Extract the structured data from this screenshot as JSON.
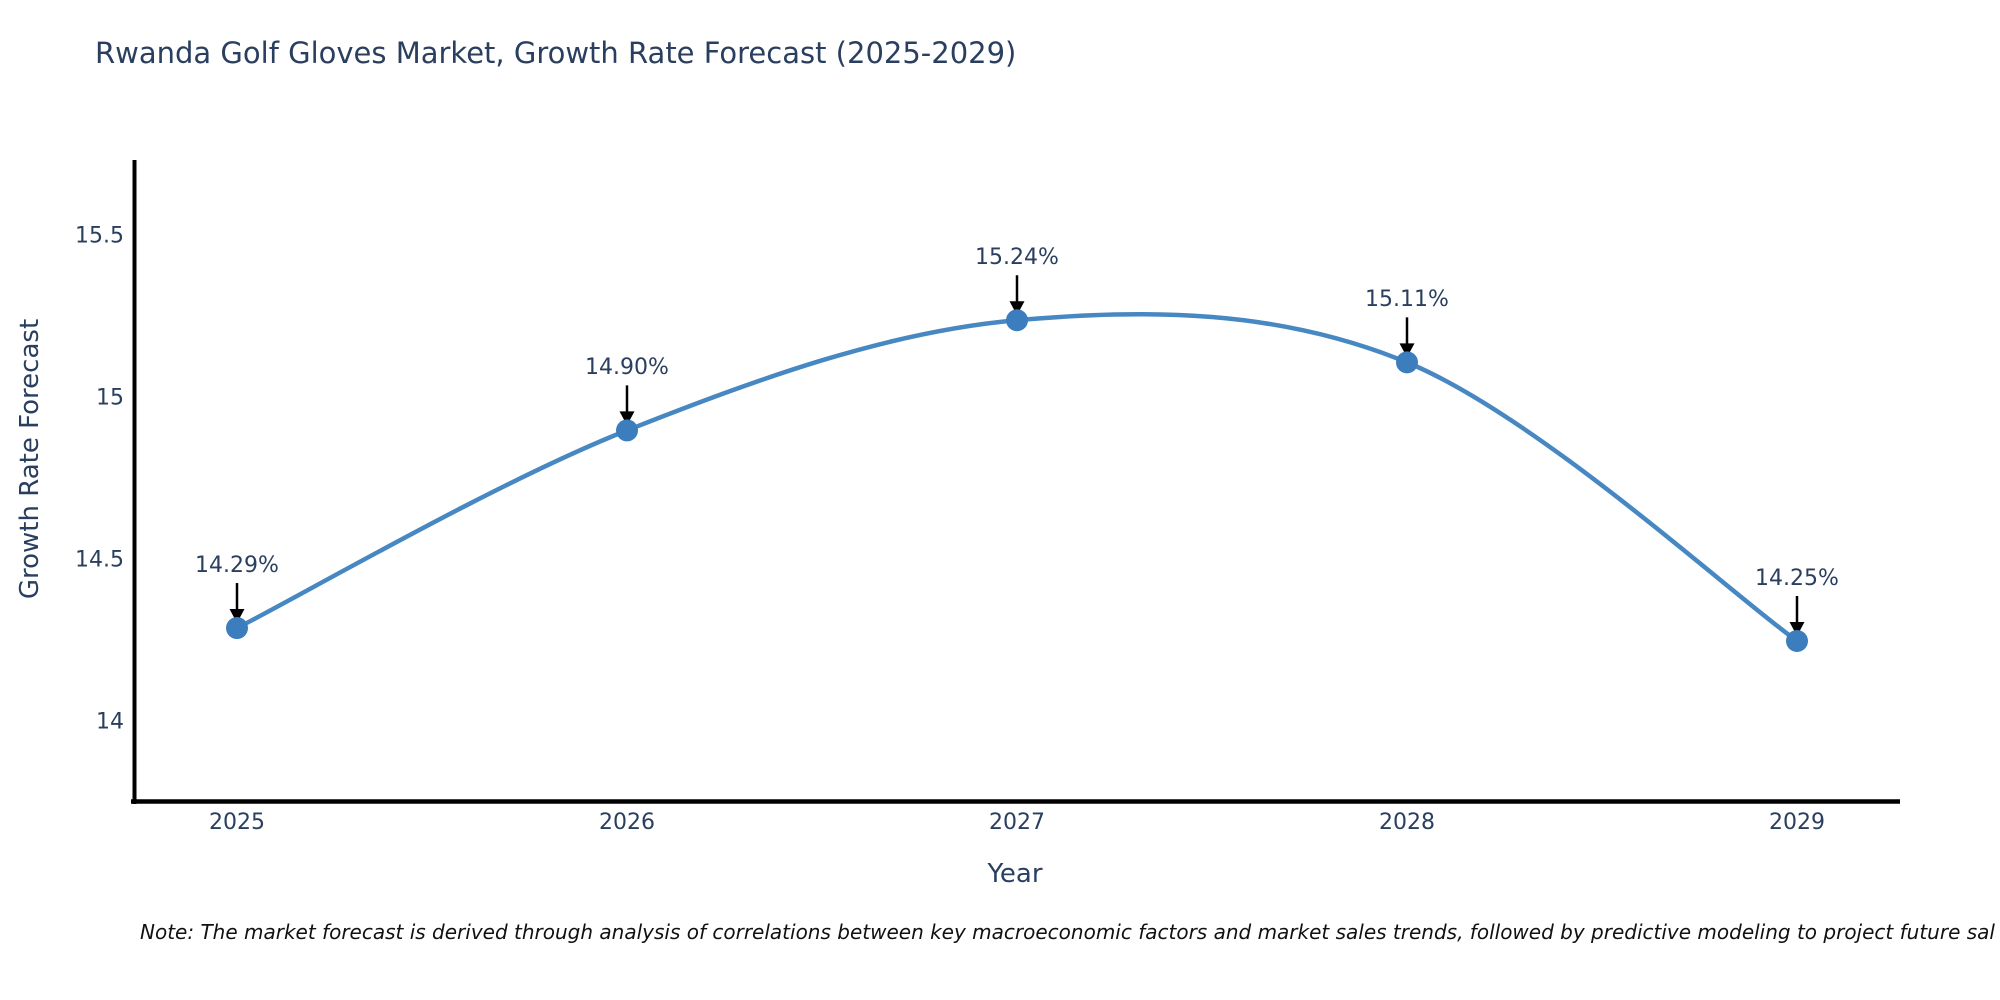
{
  "title": "Rwanda Golf Gloves Market, Growth Rate Forecast (2025-2029)",
  "note": "Note: The market forecast is derived through analysis of correlations between key macroeconomic factors and market sales trends, followed by predictive modeling to project future sal",
  "chart_data": {
    "type": "line",
    "title": "Rwanda Golf Gloves Market, Growth Rate Forecast (2025-2029)",
    "xlabel": "Year",
    "ylabel": "Growth Rate Forecast",
    "x": [
      2025,
      2026,
      2027,
      2028,
      2029
    ],
    "values": [
      14.29,
      14.9,
      15.24,
      15.11,
      14.25
    ],
    "point_labels": [
      "14.29%",
      "14.90%",
      "15.24%",
      "15.11%",
      "14.25%"
    ],
    "x_tick_labels": [
      "2025",
      "2026",
      "2027",
      "2028",
      "2029"
    ],
    "y_ticks": [
      14,
      14.5,
      15,
      15.5
    ],
    "y_tick_labels": [
      "14",
      "14.5",
      "15",
      "15.5"
    ],
    "ylim": [
      13.75,
      15.73
    ],
    "grid": false,
    "legend": false,
    "line_style": "spline",
    "annotations": "black arrows pointing down from each value label to its data point"
  },
  "colors": {
    "line": "#4788c2",
    "marker": "#3c7ebd",
    "axis": "#000000",
    "arrow": "#000000",
    "text": "#2a3f5f",
    "note_text": "#111111",
    "background": "#ffffff"
  }
}
